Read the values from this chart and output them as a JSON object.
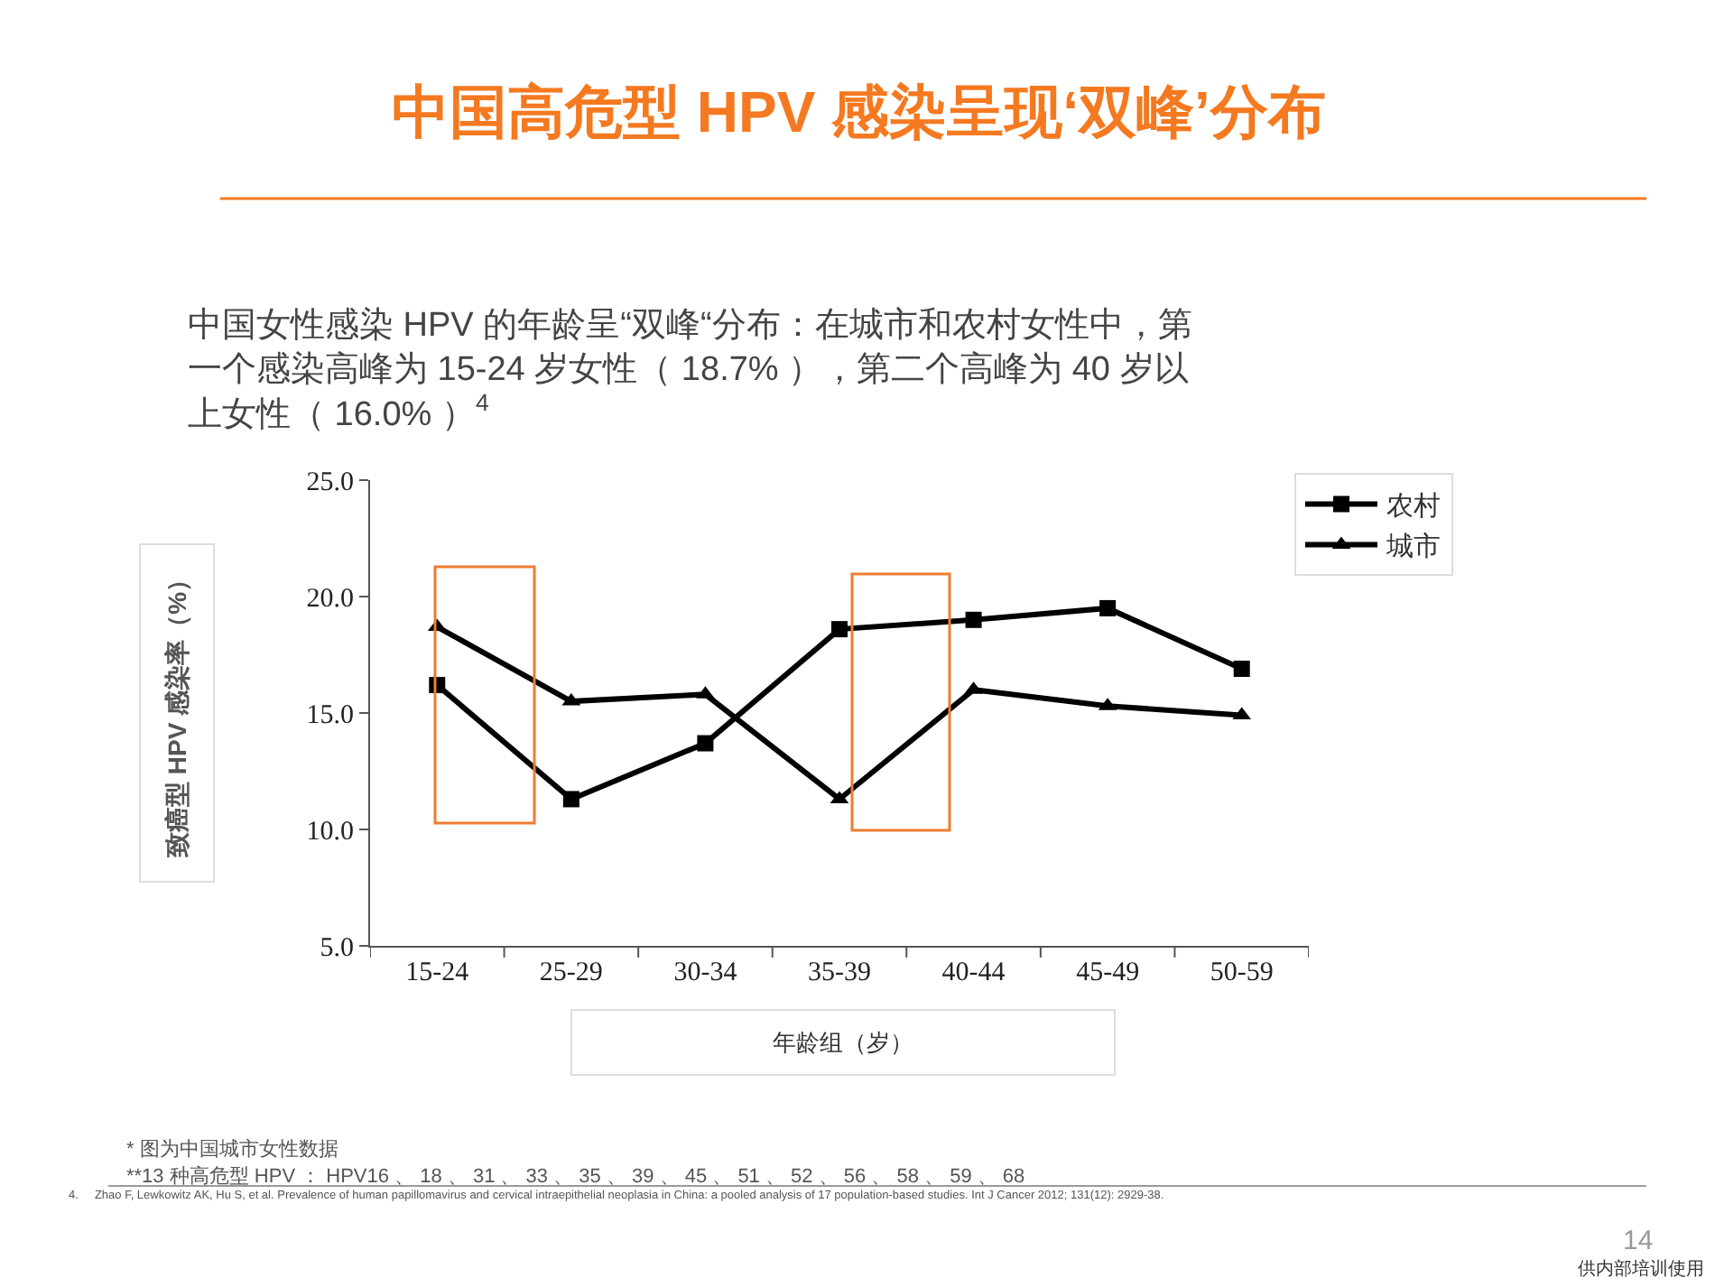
{
  "chart_data": {
    "type": "line",
    "title": "中国高危型 HPV 感染呈现‘双峰’分布",
    "subtitle": "中国女性感染 HPV 的年龄呈“双峰“分布：在城市和农村女性中，第一个感染高峰为 15-24 岁女性（ 18.7% ），第二个高峰为 40 岁以上女性（ 16.0% ）$^{4}$",
    "xlabel": "年龄组（岁）",
    "ylabel": "致癌型 HPV 感染率（%）",
    "categories": [
      "15-24",
      "25-29",
      "30-34",
      "35-39",
      "40-44",
      "45-49",
      "50-59"
    ],
    "series": [
      {
        "name": "农村",
        "color": "#000000",
        "marker": "square",
        "values": [
          16.2,
          11.3,
          13.7,
          18.6,
          19.0,
          19.5,
          16.9
        ]
      },
      {
        "name": "城市",
        "color": "#000000",
        "marker": "triangle",
        "values": [
          18.7,
          15.5,
          15.8,
          11.3,
          16.0,
          15.3,
          14.9
        ]
      }
    ],
    "ylim": [
      5,
      25
    ],
    "yticks": [
      {
        "value": 5,
        "label": "5.0"
      },
      {
        "value": 10,
        "label": "10.0"
      },
      {
        "value": 15,
        "label": "15.0"
      },
      {
        "value": 20,
        "label": "20.0"
      },
      {
        "value": 25,
        "label": "25.0"
      }
    ],
    "legend": "top right",
    "line_style": "solid",
    "annotations": [
      "* 图为中国城市女性数据",
      "**13 种高危型 HPV ： HPV16 、 18 、 31 、 33 、 35 、 39 、 45 、 51 、 52 、 56 、 58 、 59 、 68",
      "4.     Zhao F, Lewkowitz AK, Hu S, et al. Prevalence of human papillomavirus and cervical intraepithelial neoplasia in China: a pooled analysis of 17 population-based studies. Int J Cancer 2012; 131(12): 2929-38.",
      "14",
      "供内部培训使用"
    ]
  }
}
